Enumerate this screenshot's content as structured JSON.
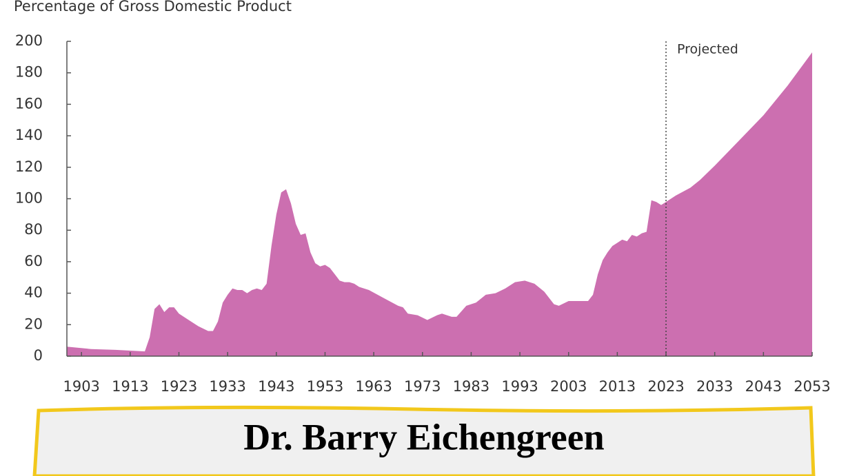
{
  "chart_data": {
    "type": "area",
    "title": "Percentage of Gross Domestic Product",
    "x": [
      1900,
      1905,
      1910,
      1916,
      1917,
      1918,
      1919,
      1920,
      1921,
      1922,
      1923,
      1925,
      1927,
      1929,
      1930,
      1931,
      1932,
      1933,
      1934,
      1935,
      1936,
      1937,
      1938,
      1939,
      1940,
      1941,
      1942,
      1943,
      1944,
      1945,
      1946,
      1947,
      1948,
      1949,
      1950,
      1951,
      1952,
      1953,
      1954,
      1955,
      1956,
      1957,
      1958,
      1959,
      1960,
      1962,
      1965,
      1968,
      1969,
      1970,
      1972,
      1974,
      1976,
      1977,
      1979,
      1980,
      1982,
      1984,
      1986,
      1988,
      1990,
      1992,
      1994,
      1996,
      1998,
      2000,
      2001,
      2003,
      2005,
      2007,
      2008,
      2009,
      2010,
      2011,
      2012,
      2013,
      2014,
      2015,
      2016,
      2017,
      2018,
      2019,
      2020,
      2021,
      2022,
      2023,
      2025,
      2028,
      2030,
      2033,
      2038,
      2043,
      2048,
      2053
    ],
    "values": [
      6,
      4.5,
      4,
      3,
      12,
      30,
      33,
      28,
      31,
      31,
      27,
      23,
      19,
      16,
      16,
      22,
      34,
      39,
      43,
      42,
      42,
      40,
      42,
      43,
      42,
      46,
      70,
      90,
      104,
      106,
      97,
      84,
      77,
      78,
      66,
      59,
      57,
      58,
      56,
      52,
      48,
      47,
      47,
      46,
      44,
      42,
      37,
      32,
      31,
      27,
      26,
      23,
      26,
      27,
      25,
      25,
      32,
      34,
      39,
      40,
      43,
      47,
      48,
      46,
      41,
      33,
      32,
      35,
      35,
      35,
      39,
      52,
      61,
      66,
      70,
      72,
      74,
      73,
      77,
      76,
      78,
      79,
      99,
      98,
      96,
      98,
      102,
      107,
      112,
      121,
      137,
      153,
      172,
      193
    ],
    "color": "#cc6fb0",
    "xlim": [
      1900,
      2053
    ],
    "xticks": [
      1903,
      1913,
      1923,
      1933,
      1943,
      1953,
      1963,
      1973,
      1983,
      1993,
      2003,
      2013,
      2023,
      2033,
      2043,
      2053
    ],
    "ylim": [
      0,
      200
    ],
    "yticks": [
      0,
      20,
      40,
      60,
      80,
      100,
      120,
      140,
      160,
      180,
      200
    ],
    "projection": {
      "x": 2023,
      "label": "Projected"
    }
  },
  "caption": {
    "name": "Dr. Barry Eichengreen"
  }
}
